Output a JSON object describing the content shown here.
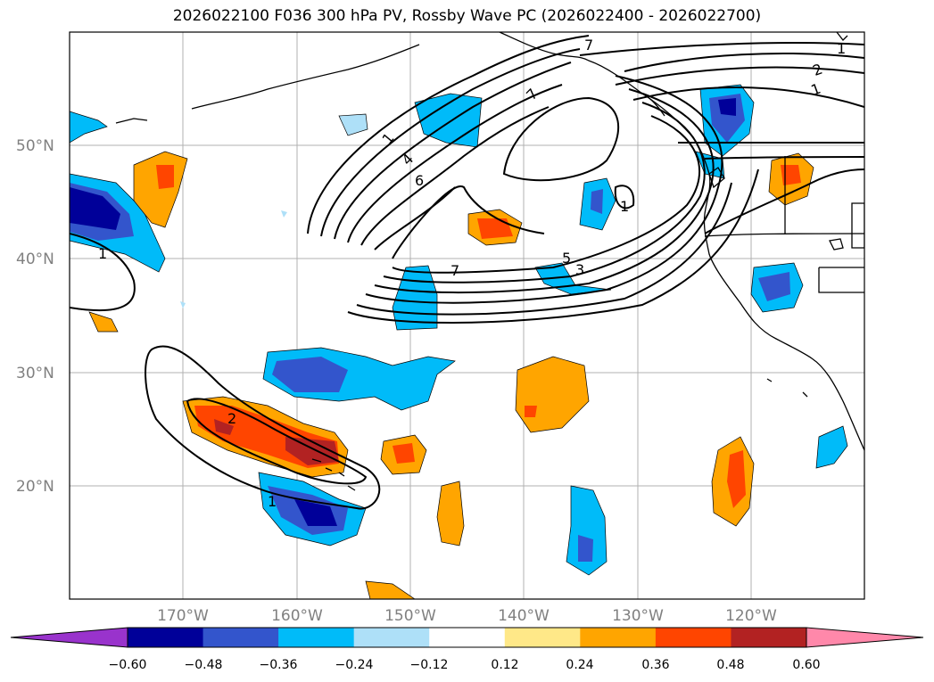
{
  "title": "2026022100 F036 300 hPa PV, Rossby Wave PC (2026022400 - 2026022700)",
  "map": {
    "lon_range": [
      -180,
      -110
    ],
    "lat_range": [
      10,
      60
    ],
    "lat_labels": [
      "50°N",
      "40°N",
      "30°N",
      "20°N"
    ],
    "lon_labels": [
      "170°W",
      "160°W",
      "150°W",
      "140°W",
      "130°W",
      "120°W"
    ],
    "contour_labels": [
      "1",
      "4",
      "6",
      "7",
      "7",
      "5",
      "3",
      "1",
      "1",
      "2",
      "1",
      "7",
      "1",
      "2",
      "1"
    ]
  },
  "colorbar": {
    "ticks": [
      "−0.60",
      "−0.48",
      "−0.36",
      "−0.24",
      "−0.12",
      "0.12",
      "0.24",
      "0.36",
      "0.48",
      "0.60"
    ],
    "colors": [
      "#9933cc",
      "#000099",
      "#3355cc",
      "#00bbf9",
      "#aee0f8",
      "#ffffff",
      "#ffe888",
      "#ffa500",
      "#ff4500",
      "#b22222",
      "#ff88aa"
    ]
  }
}
